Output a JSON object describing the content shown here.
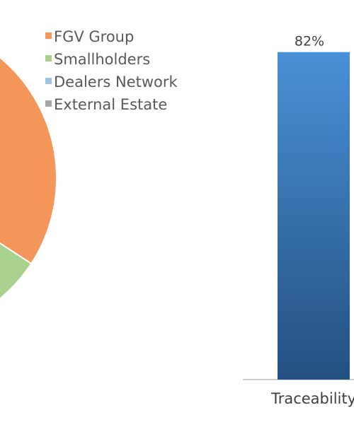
{
  "chart_data": [
    {
      "type": "pie",
      "legend": [
        {
          "label": "FGV Group",
          "color": "#F4955A"
        },
        {
          "label": "Smallholders",
          "color": "#A9D18E"
        },
        {
          "label": "Dealers Network",
          "color": "#9DC3E6"
        },
        {
          "label": "External Estate",
          "color": "#A6A6A6"
        }
      ],
      "legend_position": "top-right",
      "note": "pie is cropped at the left edge; only part of the FGV Group and Smallholders slices are visible"
    },
    {
      "type": "bar",
      "categories": [
        "Traceability"
      ],
      "series": [
        {
          "values": [
            82
          ]
        }
      ],
      "data_labels": [
        "82%"
      ],
      "bar_color_top": "#4A90D6",
      "bar_color_bottom": "#24507F",
      "axis_color": "#BFBFBF",
      "unit": "%"
    }
  ]
}
